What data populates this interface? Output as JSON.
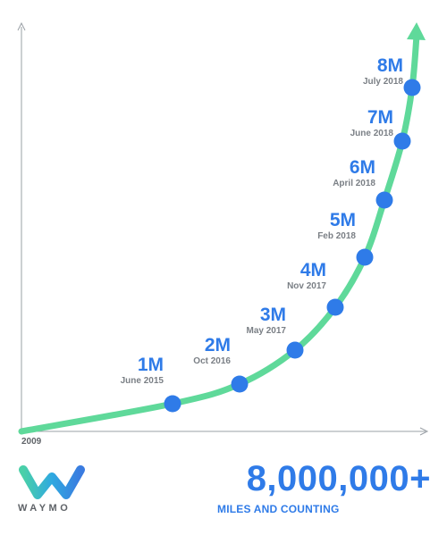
{
  "colors": {
    "curve": "#5fd99a",
    "marker": "#2f7be8",
    "axis": "#9aa0a6",
    "date_text": "#7a7f85",
    "brand_gray": "#5f6368"
  },
  "chart_data": {
    "type": "line",
    "title": "",
    "x_start_label": "2009",
    "series": [
      {
        "values_millions": [
          0,
          1,
          2,
          3,
          4,
          5,
          6,
          7,
          8
        ],
        "x": [
          "2009",
          "June 2015",
          "Oct 2016",
          "May 2017",
          "Nov 2017",
          "Feb 2018",
          "April 2018",
          "June 2018",
          "July 2018"
        ]
      }
    ],
    "milestones": [
      {
        "value": "1M",
        "date": "June 2015"
      },
      {
        "value": "2M",
        "date": "Oct 2016"
      },
      {
        "value": "3M",
        "date": "May 2017"
      },
      {
        "value": "4M",
        "date": "Nov 2017"
      },
      {
        "value": "5M",
        "date": "Feb 2018"
      },
      {
        "value": "6M",
        "date": "April 2018"
      },
      {
        "value": "7M",
        "date": "June 2018"
      },
      {
        "value": "8M",
        "date": "July 2018"
      }
    ],
    "axes_arrows": true
  },
  "brand": {
    "wordmark": "WAYMO"
  },
  "headline": {
    "number": "8,000,000+",
    "tagline": "MILES AND COUNTING"
  }
}
